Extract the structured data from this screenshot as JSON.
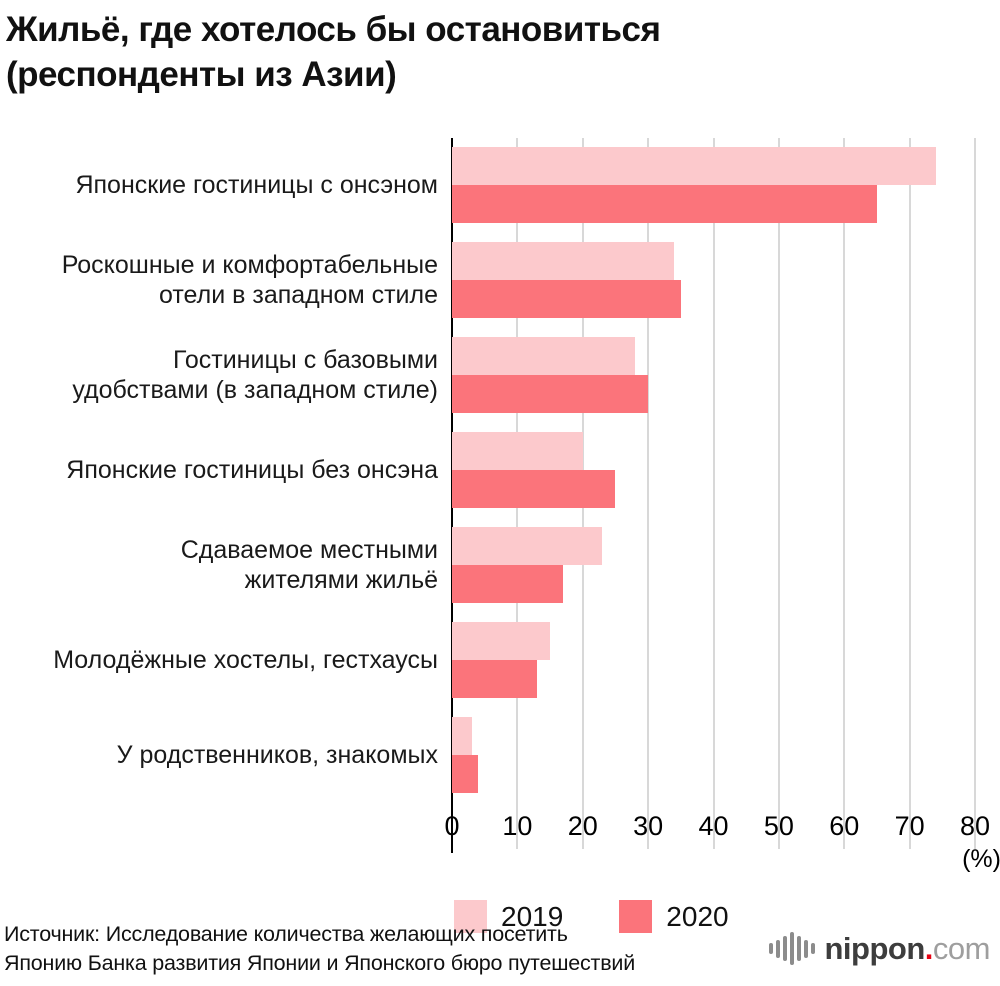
{
  "title": {
    "line1": "Жильё, где хотелось бы остановиться",
    "line2": "(респонденты из Азии)"
  },
  "legend": [
    {
      "label": "2019",
      "color": "#fcc9cc"
    },
    {
      "label": "2020",
      "color": "#fb747b"
    }
  ],
  "source": {
    "line1": "Источник: Исследование количества желающих посетить",
    "line2": "Японию Банка развития Японии и Японского бюро путешествий"
  },
  "logo": {
    "name": "nippon",
    "dot": ".",
    "tld": "com"
  },
  "chart_data": {
    "type": "bar",
    "orientation": "horizontal",
    "title": "Жильё, где хотелось бы остановиться (респонденты из Азии)",
    "categories": [
      [
        "Японские гостиницы с онсэном"
      ],
      [
        "Роскошные и комфортабельные",
        "отели в западном стиле"
      ],
      [
        "Гостиницы с базовыми",
        "удобствами (в западном стиле)"
      ],
      [
        "Японские гостиницы без онсэна"
      ],
      [
        "Сдаваемое местными",
        "жителями жильё"
      ],
      [
        "Молодёжные хостелы, гестхаусы"
      ],
      [
        "У родственников, знакомых"
      ]
    ],
    "series": [
      {
        "name": "2019",
        "color": "#fcc9cc",
        "values": [
          74,
          34,
          28,
          20,
          23,
          15,
          3
        ]
      },
      {
        "name": "2020",
        "color": "#fb747b",
        "values": [
          65,
          35,
          30,
          25,
          17,
          13,
          4
        ]
      }
    ],
    "xlim": [
      0,
      80
    ],
    "ticks": [
      0,
      10,
      20,
      30,
      40,
      50,
      60,
      70,
      80
    ],
    "unit_label": "(%)",
    "grid": true,
    "gridline_color": "#d8d8d8",
    "axis_color": "#000000",
    "legend_position": "bottom"
  }
}
